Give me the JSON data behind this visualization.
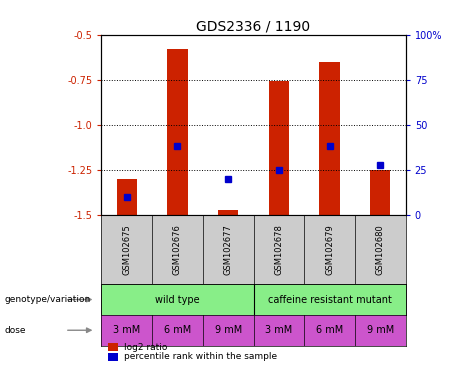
{
  "title": "GDS2336 / 1190",
  "samples": [
    "GSM102675",
    "GSM102676",
    "GSM102677",
    "GSM102678",
    "GSM102679",
    "GSM102680"
  ],
  "log2_ratio": [
    -1.3,
    -0.58,
    -1.47,
    -0.76,
    -0.65,
    -1.25
  ],
  "log2_bottom": [
    -1.5,
    -1.5,
    -1.5,
    -1.5,
    -1.5,
    -1.5
  ],
  "percentile_rank": [
    10,
    38,
    20,
    25,
    38,
    28
  ],
  "ylim": [
    -1.5,
    -0.5
  ],
  "yticks_left": [
    -0.5,
    -0.75,
    -1.0,
    -1.25,
    -1.5
  ],
  "yticks_right": [
    100,
    75,
    50,
    25,
    0
  ],
  "bar_color": "#cc2200",
  "blue_color": "#0000cc",
  "bg_color": "#ffffff",
  "plot_bg": "#ffffff",
  "genotype_labels": [
    "wild type",
    "caffeine resistant mutant"
  ],
  "genotype_color": "#88ee88",
  "dose_labels": [
    "3 mM",
    "6 mM",
    "9 mM",
    "3 mM",
    "6 mM",
    "9 mM"
  ],
  "dose_color": "#cc55cc",
  "annotation_genotype": "genotype/variation",
  "annotation_dose": "dose",
  "legend_red": "log2 ratio",
  "legend_blue": "percentile rank within the sample",
  "bar_width": 0.4,
  "title_fontsize": 10,
  "tick_fontsize": 7,
  "label_fontsize": 7
}
